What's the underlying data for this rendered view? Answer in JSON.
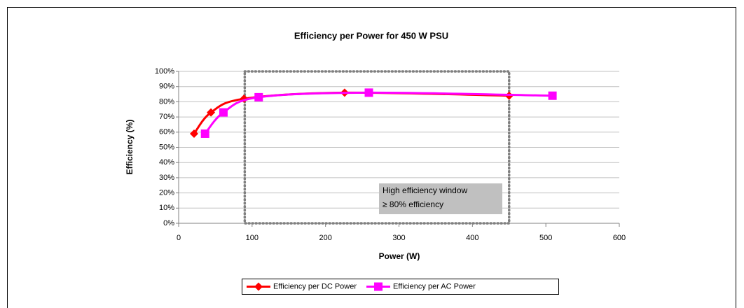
{
  "chart_data": {
    "type": "line",
    "title": "Efficiency per Power for 450 W PSU",
    "xlabel": "Power (W)",
    "ylabel": "Efficiency (%)",
    "xlim": [
      0,
      600
    ],
    "xticks": [
      0,
      100,
      200,
      300,
      400,
      500,
      600
    ],
    "ylim": [
      0,
      100
    ],
    "yticks": [
      {
        "value": 0,
        "label": "0%"
      },
      {
        "value": 10,
        "label": "10%"
      },
      {
        "value": 20,
        "label": "20%"
      },
      {
        "value": 30,
        "label": "30%"
      },
      {
        "value": 40,
        "label": "40%"
      },
      {
        "value": 50,
        "label": "50%"
      },
      {
        "value": 60,
        "label": "60%"
      },
      {
        "value": 70,
        "label": "70%"
      },
      {
        "value": 80,
        "label": "80%"
      },
      {
        "value": 90,
        "label": "90%"
      },
      {
        "value": 100,
        "label": "100%"
      }
    ],
    "grid": true,
    "legend": "bottom",
    "series": [
      {
        "name": "Efficiency per DC Power",
        "color": "#ff0000",
        "marker": "diamond",
        "x": [
          21,
          44,
          89,
          226,
          450
        ],
        "values": [
          59,
          73,
          82,
          86,
          84
        ]
      },
      {
        "name": "Efficiency per AC Power",
        "color": "#ff00ff",
        "marker": "square",
        "x": [
          36,
          61,
          109,
          259,
          509
        ],
        "values": [
          59,
          73,
          83,
          86,
          84
        ]
      }
    ],
    "window": {
      "x": [
        90,
        450
      ],
      "y": [
        0,
        100
      ]
    },
    "annotation": [
      "High efficiency window",
      "≥ 80% efficiency"
    ]
  }
}
